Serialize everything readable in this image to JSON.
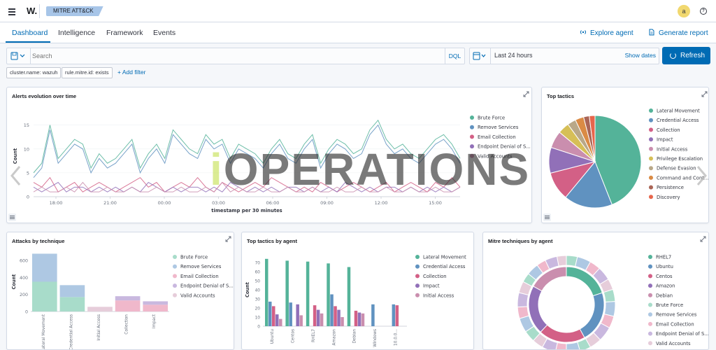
{
  "header": {
    "logo_text": "W.",
    "breadcrumb": "MITRE ATT&CK",
    "avatar_letter": "a",
    "help_glyph": "?"
  },
  "tabs": [
    "Dashboard",
    "Intelligence",
    "Framework",
    "Events"
  ],
  "nav_actions": {
    "explore_agent": "Explore agent",
    "generate_report": "Generate report"
  },
  "search": {
    "placeholder": "Search",
    "dql_label": "DQL",
    "time_range": "Last 24 hours",
    "show_dates": "Show dates",
    "refresh": "Refresh"
  },
  "filters": {
    "pills": [
      "cluster.name: wazuh",
      "rule.mitre.id: exists"
    ],
    "add_filter": "+ Add filter"
  },
  "watermark": {
    "text_a": "O",
    "text_b": "PERATIONS",
    "text_prefix": "i"
  },
  "colors": {
    "accent": "#006bb4",
    "refresh_bg": "#006bb4",
    "avatar_bg": "#f1d86f",
    "breadcrumb_bg": "#a7c5e8"
  },
  "panels": {
    "alerts_evolution": {
      "title": "Alerts evolution over time"
    },
    "top_tactics": {
      "title": "Top tactics"
    },
    "attacks_by_technique": {
      "title": "Attacks by technique"
    },
    "top_tactics_by_agent": {
      "title": "Top tactics by agent"
    },
    "mitre_by_agent": {
      "title": "Mitre techniques by agent"
    }
  },
  "chart_data": [
    {
      "id": "alerts_evolution",
      "type": "line",
      "title": "Alerts evolution over time",
      "xlabel": "timestamp per 30 minutes",
      "ylabel": "Count",
      "ylim": [
        0,
        17
      ],
      "yticks": [
        0,
        5,
        10,
        15
      ],
      "xtick_labels": [
        "18:00",
        "21:00",
        "00:00",
        "03:00",
        "06:00",
        "09:00",
        "12:00",
        "15:00"
      ],
      "legend_position": "right",
      "series": [
        {
          "name": "Brute Force",
          "color": "#54b399",
          "values": [
            5,
            7,
            15,
            8,
            10,
            12,
            11,
            6,
            9,
            7,
            8,
            10,
            12,
            6,
            9,
            11,
            8,
            14,
            12,
            10,
            9,
            13,
            11,
            12,
            8,
            11,
            10,
            9,
            7,
            10,
            12,
            9,
            8,
            11,
            13,
            7,
            10,
            12,
            11,
            9,
            10,
            14,
            16,
            12,
            10,
            11,
            9,
            8,
            10,
            12,
            13,
            11,
            8
          ]
        },
        {
          "name": "Remove Services",
          "color": "#6092c0",
          "values": [
            4,
            6,
            14,
            7,
            9,
            11,
            10,
            5,
            8,
            6,
            7,
            9,
            11,
            5,
            8,
            10,
            7,
            13,
            11,
            9,
            8,
            12,
            10,
            11,
            7,
            10,
            9,
            8,
            6,
            9,
            11,
            8,
            7,
            10,
            12,
            6,
            9,
            11,
            10,
            8,
            9,
            13,
            15,
            11,
            9,
            10,
            8,
            7,
            9,
            11,
            12,
            10,
            7
          ]
        },
        {
          "name": "Email Collection",
          "color": "#d36086",
          "values": [
            3,
            2,
            4,
            1,
            2,
            3,
            1,
            2,
            3,
            2,
            1,
            2,
            3,
            4,
            2,
            3,
            1,
            2,
            3,
            2,
            4,
            2,
            1,
            3,
            2,
            1,
            2,
            3,
            2,
            4,
            3,
            2,
            1,
            2,
            1,
            3,
            2,
            1,
            2,
            3,
            2,
            1,
            2,
            3,
            1,
            2,
            3,
            2,
            1,
            3,
            2,
            4,
            2
          ]
        },
        {
          "name": "Endpoint Denial of Service",
          "color": "#9170b8",
          "values": [
            2,
            1,
            2,
            3,
            1,
            2,
            2,
            1,
            2,
            1,
            2,
            1,
            2,
            1,
            3,
            2,
            1,
            2,
            1,
            2,
            2,
            1,
            2,
            1,
            3,
            2,
            1,
            2,
            1,
            2,
            1,
            2,
            2,
            1,
            2,
            1,
            2,
            1,
            3,
            2,
            1,
            2,
            1,
            2,
            2,
            1,
            2,
            1,
            2,
            1,
            2,
            1,
            2
          ]
        },
        {
          "name": "Valid Accounts",
          "color": "#ca8eae",
          "values": [
            1,
            2,
            1,
            1,
            2,
            1,
            3,
            1,
            1,
            2,
            1,
            1,
            2,
            1,
            1,
            2,
            1,
            1,
            2,
            1,
            1,
            2,
            1,
            3,
            1,
            2,
            1,
            1,
            2,
            1,
            1,
            2,
            1,
            1,
            2,
            1,
            1,
            2,
            1,
            1,
            2,
            1,
            1,
            2,
            1,
            1,
            2,
            1,
            1,
            2,
            1,
            1,
            2
          ]
        }
      ],
      "legend_labels": [
        "Brute Force",
        "Remove Services",
        "Email Collection",
        "Endpoint Denial of S...",
        "Valid Accounts"
      ]
    },
    {
      "id": "top_tactics",
      "type": "pie",
      "title": "Top tactics",
      "legend_position": "right",
      "slices": [
        {
          "name": "Lateral Movement",
          "value": 44,
          "color": "#54b399"
        },
        {
          "name": "Credential Access",
          "value": 17,
          "color": "#6092c0"
        },
        {
          "name": "Collection",
          "value": 10,
          "color": "#d36086"
        },
        {
          "name": "Impact",
          "value": 9,
          "color": "#9170b8"
        },
        {
          "name": "Initial Access",
          "value": 6,
          "color": "#ca8eae"
        },
        {
          "name": "Privilege Escalation",
          "value": 4,
          "color": "#d6bf57"
        },
        {
          "name": "Defense Evasion",
          "value": 3,
          "color": "#b9a888"
        },
        {
          "name": "Command and Cont...",
          "value": 3,
          "color": "#da8b45"
        },
        {
          "name": "Persistence",
          "value": 2,
          "color": "#aa6556"
        },
        {
          "name": "Discovery",
          "value": 2,
          "color": "#e7664c"
        }
      ]
    },
    {
      "id": "attacks_by_technique",
      "type": "bar",
      "title": "Attacks by technique",
      "ylabel": "Count",
      "ylim": [
        0,
        700
      ],
      "yticks": [
        0,
        200,
        400,
        600
      ],
      "categories": [
        "Lateral Movement",
        "Credential Access",
        "Initial Access",
        "Collection",
        "Impact"
      ],
      "category_labels": [
        "Lateral Movement",
        "Credential Access",
        "Initial Access",
        "Collection",
        "Impact"
      ],
      "stacked": true,
      "legend_position": "right",
      "series": [
        {
          "name": "Brute Force",
          "color": "#a8dcca",
          "values": [
            350,
            170,
            0,
            0,
            0
          ]
        },
        {
          "name": "Remove Services",
          "color": "#aec8e3",
          "values": [
            330,
            140,
            0,
            0,
            0
          ]
        },
        {
          "name": "Email Collection",
          "color": "#f0b8cb",
          "values": [
            0,
            0,
            0,
            130,
            80
          ]
        },
        {
          "name": "Endpoint Denial of Service",
          "color": "#c9b8df",
          "values": [
            0,
            0,
            0,
            50,
            40
          ]
        },
        {
          "name": "Valid Accounts",
          "color": "#e6cdda",
          "values": [
            0,
            0,
            55,
            0,
            0
          ]
        }
      ],
      "legend_labels": [
        "Brute Force",
        "Remove Services",
        "Email Collection",
        "Endpoint Denial of S...",
        "Valid Accounts"
      ]
    },
    {
      "id": "top_tactics_by_agent",
      "type": "bar",
      "title": "Top tactics by agent",
      "ylabel": "Count",
      "ylim": [
        0,
        80
      ],
      "yticks": [
        0,
        10,
        20,
        30,
        40,
        50,
        60,
        70
      ],
      "categories": [
        "Ubuntu",
        "Centos",
        "RHEL7",
        "Amazon",
        "Debian",
        "Windows",
        "10.0.0..."
      ],
      "legend_position": "right",
      "series": [
        {
          "name": "Lateral Movement",
          "color": "#54b399",
          "values": [
            74,
            72,
            71,
            69,
            65,
            0,
            0
          ]
        },
        {
          "name": "Credential Access",
          "color": "#6092c0",
          "values": [
            27,
            26,
            0,
            35,
            0,
            24,
            24
          ]
        },
        {
          "name": "Collection",
          "color": "#d36086",
          "values": [
            22,
            0,
            23,
            22,
            17,
            0,
            23
          ]
        },
        {
          "name": "Impact",
          "color": "#9170b8",
          "values": [
            13,
            24,
            18,
            18,
            15,
            0,
            0
          ]
        },
        {
          "name": "Initial Access",
          "color": "#ca8eae",
          "values": [
            8,
            12,
            14,
            10,
            14,
            0,
            0
          ]
        }
      ]
    },
    {
      "id": "mitre_by_agent",
      "type": "pie",
      "title": "Mitre techniques by agent",
      "legend_position": "right",
      "inner_ring": [
        {
          "name": "RHEL7",
          "value": 20,
          "color": "#54b399"
        },
        {
          "name": "Ubuntu",
          "value": 22,
          "color": "#6092c0"
        },
        {
          "name": "Centos",
          "value": 20,
          "color": "#d36086"
        },
        {
          "name": "Amazon",
          "value": 21,
          "color": "#9170b8"
        },
        {
          "name": "Debian",
          "value": 17,
          "color": "#ca8eae"
        }
      ],
      "outer_ring_colors": [
        "#a8dcca",
        "#aec8e3",
        "#f0b8cb",
        "#c9b8df",
        "#e6cdda"
      ],
      "legend_labels": [
        "RHEL7",
        "Ubuntu",
        "Centos",
        "Amazon",
        "Debian",
        "Brute Force",
        "Remove Services",
        "Email Collection",
        "Endpoint Denial of S...",
        "Valid Accounts"
      ],
      "legend_colors": [
        "#54b399",
        "#6092c0",
        "#d36086",
        "#9170b8",
        "#ca8eae",
        "#a8dcca",
        "#aec8e3",
        "#f0b8cb",
        "#c9b8df",
        "#e6cdda"
      ]
    }
  ]
}
